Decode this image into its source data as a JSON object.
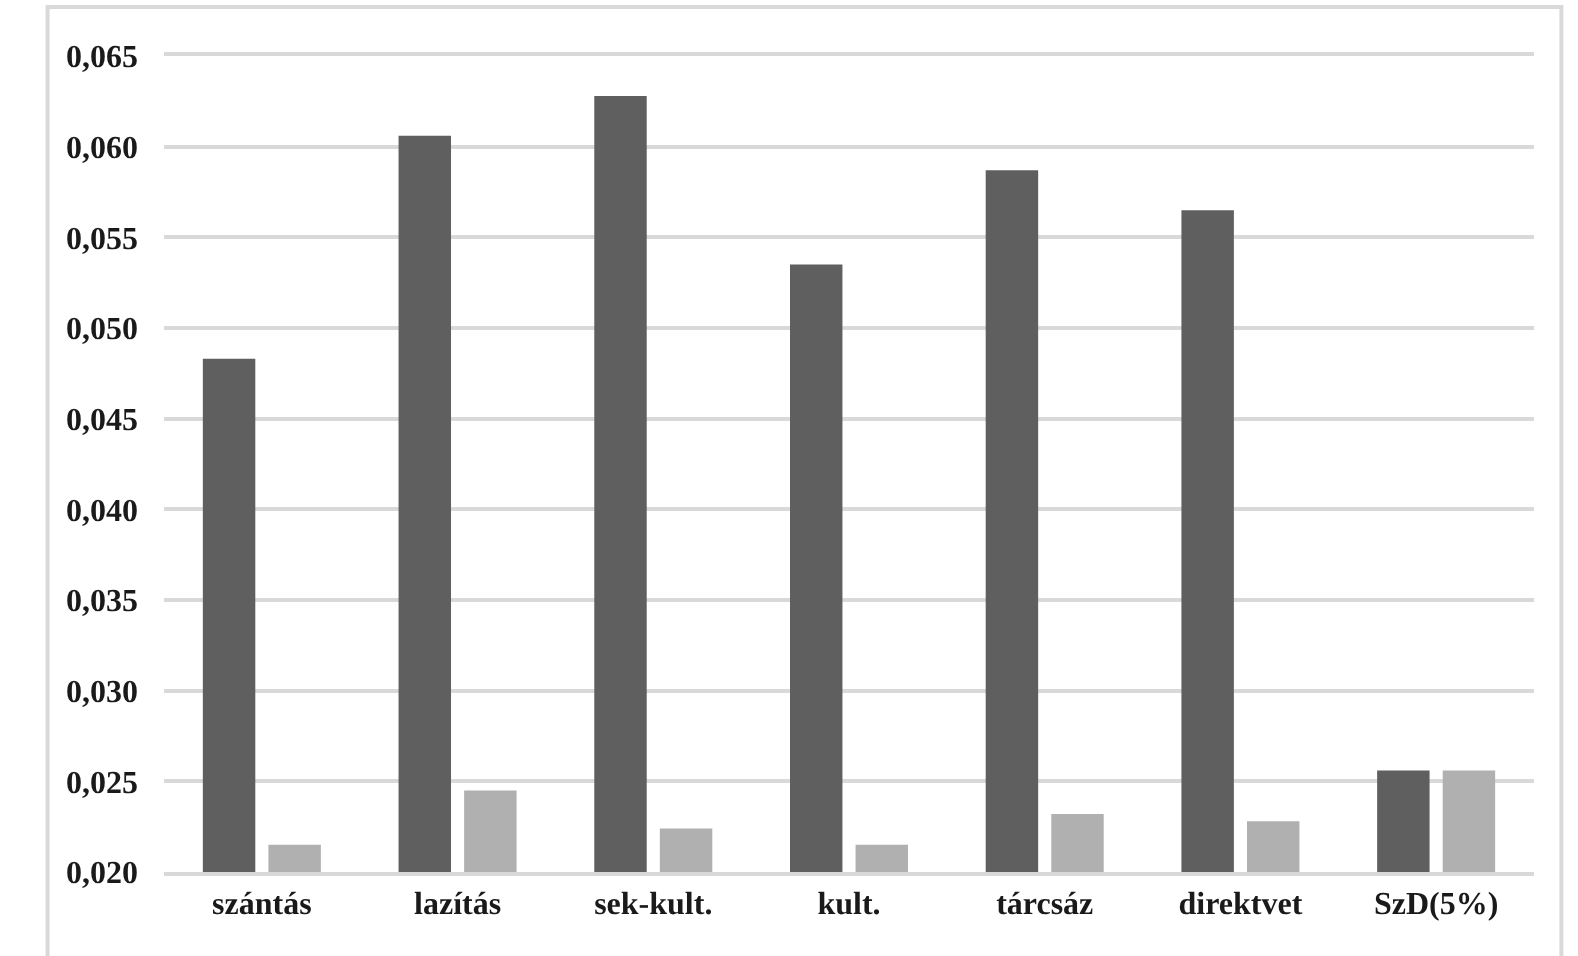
{
  "chart_data": {
    "type": "bar",
    "categories": [
      "szántás",
      "lazítás",
      "sek-kult.",
      "kult.",
      "tárcsáz",
      "direktvet",
      "SzD(5%)"
    ],
    "series": [
      {
        "color": "#5f5f5f",
        "values": [
          0.0483,
          0.0606,
          0.0628,
          0.0535,
          0.0587,
          0.0565,
          0.0256
        ]
      },
      {
        "color": "#b0b0b0",
        "values": [
          0.0215,
          0.0245,
          0.0224,
          0.0215,
          0.0232,
          0.0228,
          0.0256
        ]
      }
    ],
    "ylim": [
      0.02,
      0.065
    ],
    "yticks": [
      {
        "value": 0.02,
        "label": "0,020"
      },
      {
        "value": 0.025,
        "label": "0,025"
      },
      {
        "value": 0.03,
        "label": "0,030"
      },
      {
        "value": 0.035,
        "label": "0,035"
      },
      {
        "value": 0.04,
        "label": "0,040"
      },
      {
        "value": 0.045,
        "label": "0,045"
      },
      {
        "value": 0.05,
        "label": "0,050"
      },
      {
        "value": 0.055,
        "label": "0,055"
      },
      {
        "value": 0.06,
        "label": "0,060"
      },
      {
        "value": 0.065,
        "label": "0,065"
      }
    ],
    "grid": "y"
  }
}
